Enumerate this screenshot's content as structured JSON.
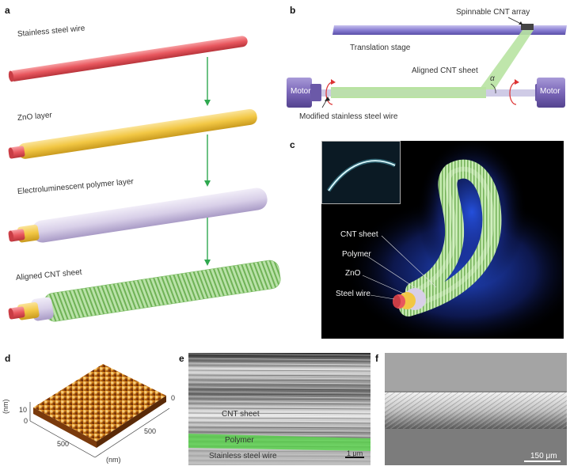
{
  "panels": {
    "a": {
      "letter": "a",
      "layers": [
        "Stainless steel wire",
        "ZnO layer",
        "Electroluminescent polymer layer",
        "Aligned CNT sheet"
      ]
    },
    "b": {
      "letter": "b",
      "spinnable": "Spinnable CNT array",
      "stage": "Translation stage",
      "sheet": "Aligned CNT sheet",
      "motor_left": "Motor",
      "motor_right": "Motor",
      "angle": "α",
      "wire": "Modified stainless steel wire"
    },
    "c": {
      "letter": "c",
      "labels": [
        "CNT sheet",
        "Polymer",
        "ZnO",
        "Steel wire"
      ]
    },
    "d": {
      "letter": "d",
      "z_tick": "10",
      "z_zero": "0",
      "z_unit": "(nm)",
      "x_tick": "500",
      "x_unit": "(nm)",
      "y_tick": "500",
      "y_zero": "0"
    },
    "e": {
      "letter": "e",
      "labels": [
        "CNT sheet",
        "Polymer",
        "Stainless steel wire"
      ],
      "scale": "1 μm"
    },
    "f": {
      "letter": "f",
      "scale": "150 μm"
    }
  },
  "colors": {
    "steel": "#e8575e",
    "zno": "#f2c744",
    "polymer": "#d8cfe8",
    "cnt": "#9ed28a",
    "arrow": "#2fa84f",
    "motor": "#7a66b8"
  }
}
